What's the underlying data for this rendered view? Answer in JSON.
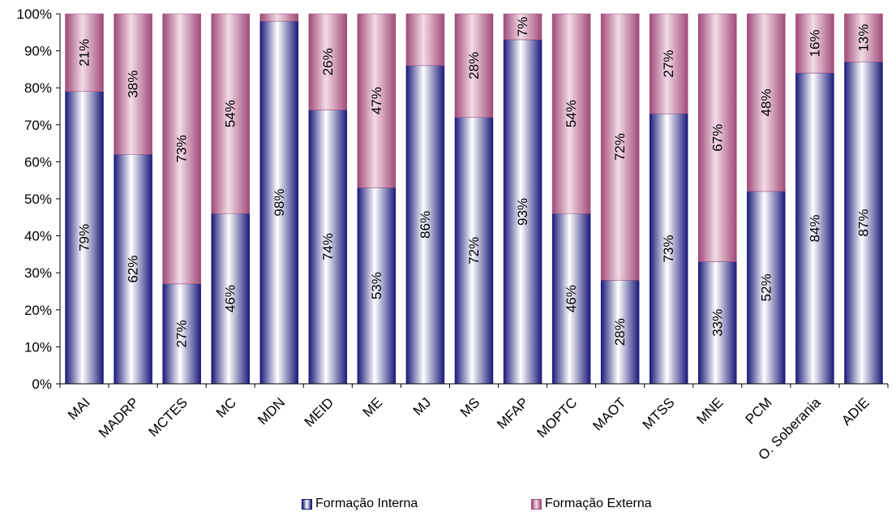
{
  "chart_data": {
    "type": "bar",
    "stacked": true,
    "percent": true,
    "categories": [
      "MAI",
      "MADRP",
      "MCTES",
      "MC",
      "MDN",
      "MEID",
      "ME",
      "MJ",
      "MS",
      "MFAP",
      "MOPTC",
      "MAOT",
      "MTSS",
      "MNE",
      "PCM",
      "O. Soberania",
      "ADIE"
    ],
    "series": [
      {
        "name": "Formação Interna",
        "values": [
          79,
          62,
          27,
          46,
          98,
          74,
          53,
          86,
          72,
          93,
          46,
          28,
          73,
          33,
          52,
          84,
          87
        ],
        "labels": [
          "79%",
          "62%",
          "27%",
          "46%",
          "98%",
          "74%",
          "53%",
          "86%",
          "72%",
          "93%",
          "46%",
          "28%",
          "73%",
          "33%",
          "52%",
          "84%",
          "87%"
        ]
      },
      {
        "name": "Formação Externa",
        "values": [
          21,
          38,
          73,
          54,
          2,
          26,
          47,
          14,
          28,
          7,
          54,
          72,
          27,
          67,
          48,
          16,
          13
        ],
        "labels": [
          "21%",
          "38%",
          "73%",
          "54%",
          "",
          "26%",
          "47%",
          "",
          "28%",
          "7%",
          "54%",
          "72%",
          "27%",
          "67%",
          "48%",
          "16%",
          "13%"
        ]
      }
    ],
    "yticks": [
      "0%",
      "10%",
      "20%",
      "30%",
      "40%",
      "50%",
      "60%",
      "70%",
      "80%",
      "90%",
      "100%"
    ],
    "ylim": [
      0,
      100
    ],
    "legend_position": "bottom",
    "colors": {
      "interna_edge": "#1a1a7a",
      "interna_mid": "#ffffff",
      "externa_edge": "#a04a78",
      "externa_mid": "#f3dbe6"
    }
  }
}
